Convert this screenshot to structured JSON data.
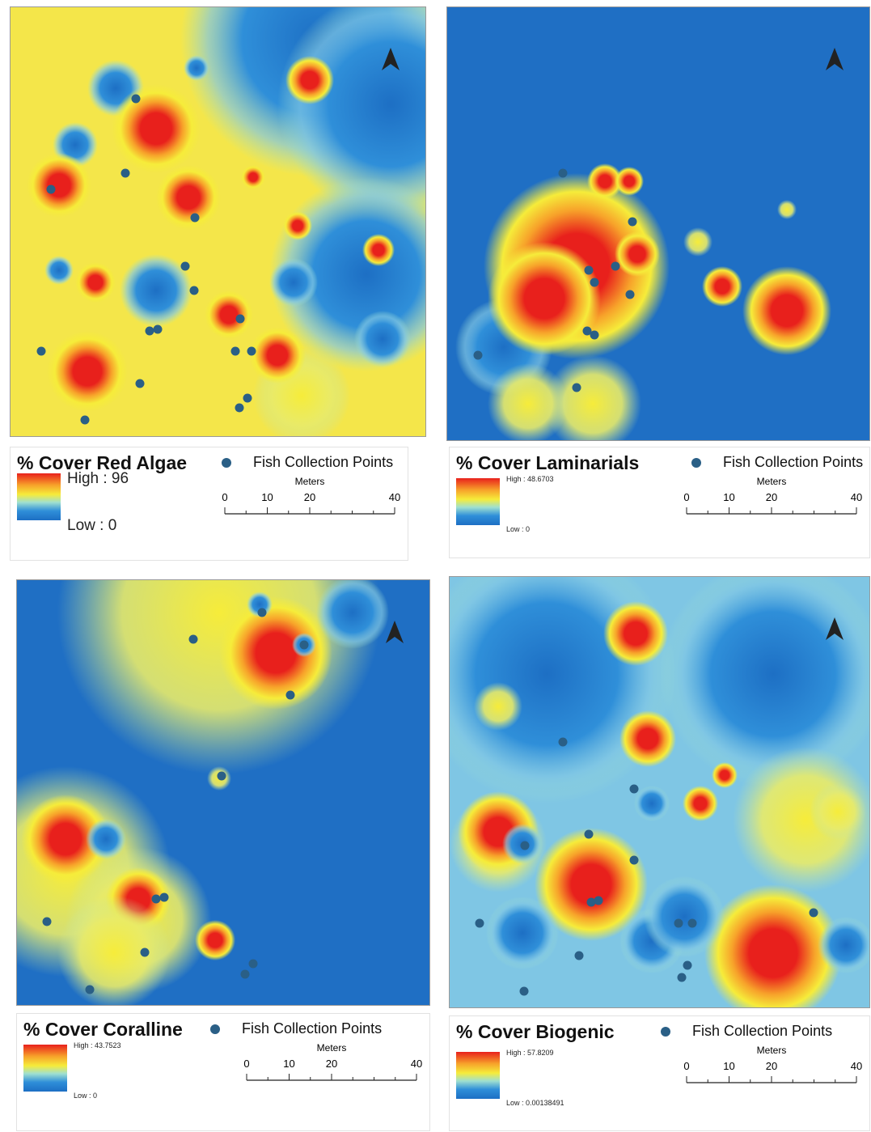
{
  "panels": [
    {
      "title": "% Cover Red Algae",
      "points_label": "Fish Collection Points",
      "high": "High : 96",
      "low": "Low : 0",
      "scale": {
        "unit": "Meters",
        "ticks": [
          0,
          10,
          20,
          40
        ]
      }
    },
    {
      "title": "% Cover Laminarials",
      "points_label": "Fish Collection Points",
      "high": "High : 48.6703",
      "low": "Low : 0",
      "scale": {
        "unit": "Meters",
        "ticks": [
          0,
          10,
          20,
          40
        ]
      }
    },
    {
      "title": "% Cover Coralline",
      "points_label": "Fish Collection Points",
      "high": "High : 43.7523",
      "low": "Low : 0",
      "scale": {
        "unit": "Meters",
        "ticks": [
          0,
          10,
          20,
          40
        ]
      }
    },
    {
      "title": "% Cover Biogenic",
      "points_label": "Fish Collection Points",
      "high": "High : 57.8209",
      "low": "Low : 0.00138491",
      "scale": {
        "unit": "Meters",
        "ticks": [
          0,
          10,
          20,
          40
        ]
      }
    }
  ]
}
